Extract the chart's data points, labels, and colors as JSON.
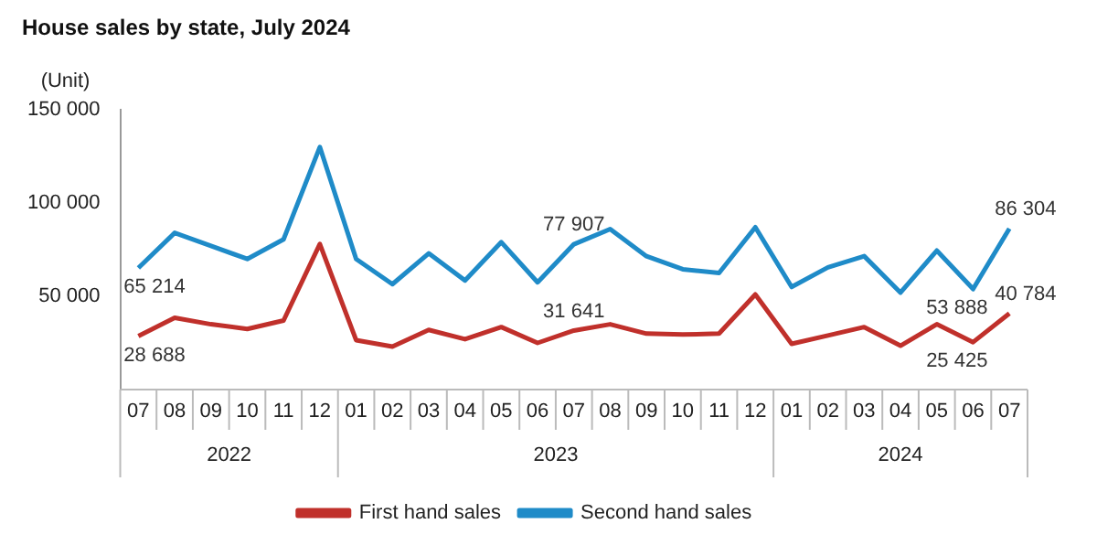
{
  "chart_data": {
    "type": "line",
    "title": "House sales by state, July 2024",
    "ylabel": "(Unit)",
    "categories": [
      "07",
      "08",
      "09",
      "10",
      "11",
      "12",
      "01",
      "02",
      "03",
      "04",
      "05",
      "06",
      "07",
      "08",
      "09",
      "10",
      "11",
      "12",
      "01",
      "02",
      "03",
      "04",
      "05",
      "06",
      "07"
    ],
    "annotations": [
      "2022",
      "2023",
      "2024"
    ],
    "ylim": [
      0,
      150000
    ],
    "yticks": [
      {
        "value": 0,
        "label": null
      },
      {
        "value": 50000,
        "label": "50 000"
      },
      {
        "value": 100000,
        "label": "100 000"
      },
      {
        "value": 150000,
        "label": "150 000"
      }
    ],
    "grid": false,
    "legend": "bottom",
    "line_style": "solid",
    "series": [
      {
        "name": "First hand sales",
        "color": "#c0302b",
        "values": [
          28688,
          38500,
          35000,
          32500,
          37000,
          78000,
          26500,
          23000,
          32000,
          27000,
          33500,
          25000,
          31641,
          35000,
          30000,
          29500,
          30000,
          51000,
          24500,
          29000,
          33500,
          23500,
          35000,
          25425,
          40784
        ],
        "value_labels": [
          "28 688",
          null,
          null,
          null,
          null,
          null,
          null,
          null,
          null,
          null,
          null,
          null,
          "31 641",
          null,
          null,
          null,
          null,
          null,
          null,
          null,
          null,
          null,
          null,
          "25 425",
          "40 784"
        ]
      },
      {
        "name": "Second hand sales",
        "color": "#1f8bc8",
        "values": [
          65214,
          84000,
          77000,
          70000,
          80500,
          130000,
          70000,
          56500,
          73000,
          58500,
          79000,
          57500,
          77907,
          86000,
          71500,
          64500,
          62500,
          87000,
          55000,
          65500,
          71500,
          52000,
          74500,
          53888,
          86304
        ],
        "value_labels": [
          "65 214",
          null,
          null,
          null,
          null,
          null,
          null,
          null,
          null,
          null,
          null,
          null,
          "77 907",
          null,
          null,
          null,
          null,
          null,
          null,
          null,
          null,
          null,
          null,
          "53 888",
          "86 304"
        ]
      }
    ]
  }
}
